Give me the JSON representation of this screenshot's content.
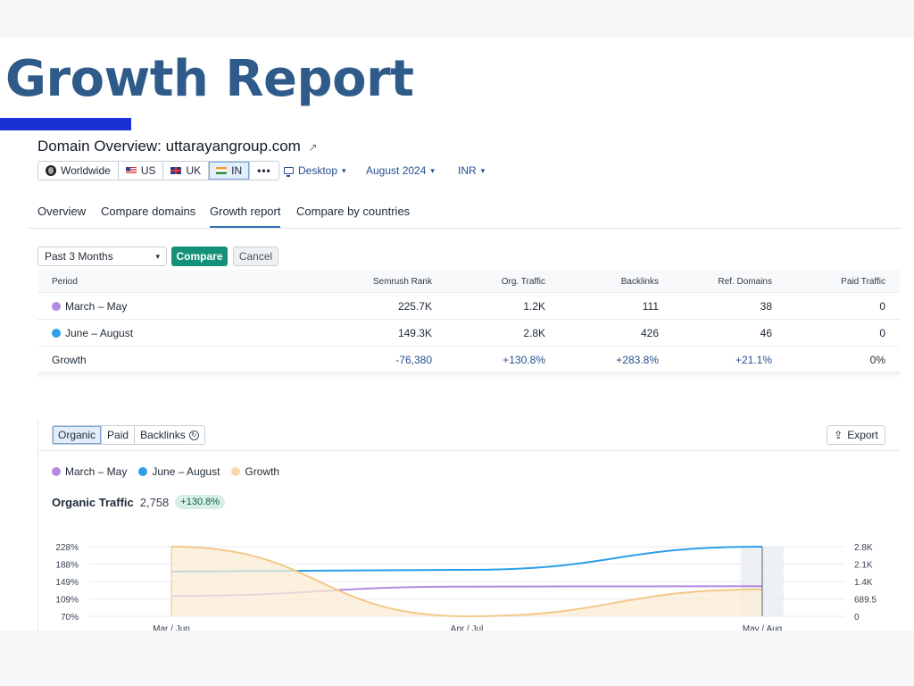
{
  "page": {
    "title": "Growth Report"
  },
  "domain": {
    "label": "Domain Overview:",
    "name": "uttarayangroup.com"
  },
  "regions": [
    {
      "label": "Worldwide",
      "icon": "globe-icon",
      "active": false
    },
    {
      "label": "US",
      "icon": "us-flag-icon",
      "active": false
    },
    {
      "label": "UK",
      "icon": "uk-flag-icon",
      "active": false
    },
    {
      "label": "IN",
      "icon": "in-flag-icon",
      "active": true
    },
    {
      "label": "•••",
      "icon": "more-icon",
      "active": false
    }
  ],
  "selectors": {
    "device": "Desktop",
    "date": "August 2024",
    "currency": "INR"
  },
  "tabs": [
    {
      "label": "Overview",
      "active": false
    },
    {
      "label": "Compare domains",
      "active": false
    },
    {
      "label": "Growth report",
      "active": true
    },
    {
      "label": "Compare by countries",
      "active": false
    }
  ],
  "controls": {
    "period": "Past 3 Months",
    "compare": "Compare",
    "cancel": "Cancel"
  },
  "table": {
    "headers": [
      "Period",
      "Semrush Rank",
      "Org. Traffic",
      "Backlinks",
      "Ref. Domains",
      "Paid Traffic"
    ],
    "rows": [
      {
        "period": "March – May",
        "color": "#b389e2",
        "cells": [
          "225.7K",
          "1.2K",
          "111",
          "38",
          "0"
        ]
      },
      {
        "period": "June – August",
        "color": "#2d9ee8",
        "cells": [
          "149.3K",
          "2.8K",
          "426",
          "46",
          "0"
        ]
      },
      {
        "period": "Growth",
        "color": "",
        "cells": [
          "-76,380",
          "+130.8%",
          "+283.8%",
          "+21.1%",
          "0%"
        ]
      }
    ]
  },
  "subtabs": [
    {
      "label": "Organic",
      "active": true
    },
    {
      "label": "Paid",
      "active": false
    },
    {
      "label": "Backlinks",
      "active": false
    }
  ],
  "export_label": "Export",
  "legend": [
    {
      "label": "March – May",
      "color": "#b389e2"
    },
    {
      "label": "June – August",
      "color": "#2d9ee8"
    },
    {
      "label": "Growth",
      "color": "#f8d9a8"
    }
  ],
  "metric": {
    "label": "Organic Traffic",
    "value": "2,758",
    "badge": "+130.8%"
  },
  "chart_data": {
    "type": "line",
    "categories": [
      "Mar / Jun",
      "Apr / Jul",
      "May / Aug"
    ],
    "left_axis_ticks": [
      "228%",
      "188%",
      "149%",
      "109%",
      "70%"
    ],
    "right_axis_ticks": [
      "2.8K",
      "2.1K",
      "1.4K",
      "689.5",
      "0"
    ],
    "left_ylim": [
      70,
      228
    ],
    "right_ylim": [
      0,
      2758
    ],
    "series": [
      {
        "name": "March – May",
        "axis": "right",
        "color": "#b389e2",
        "values": [
          811,
          1176,
          1195
        ]
      },
      {
        "name": "June – August",
        "axis": "right",
        "color": "#2d9ee8",
        "values": [
          1773,
          1840,
          2758
        ]
      },
      {
        "name": "Growth",
        "axis": "left",
        "color": "#f2c88a",
        "fill": "#fbecd4",
        "values": [
          228,
          70,
          131
        ]
      }
    ],
    "grid": true
  }
}
